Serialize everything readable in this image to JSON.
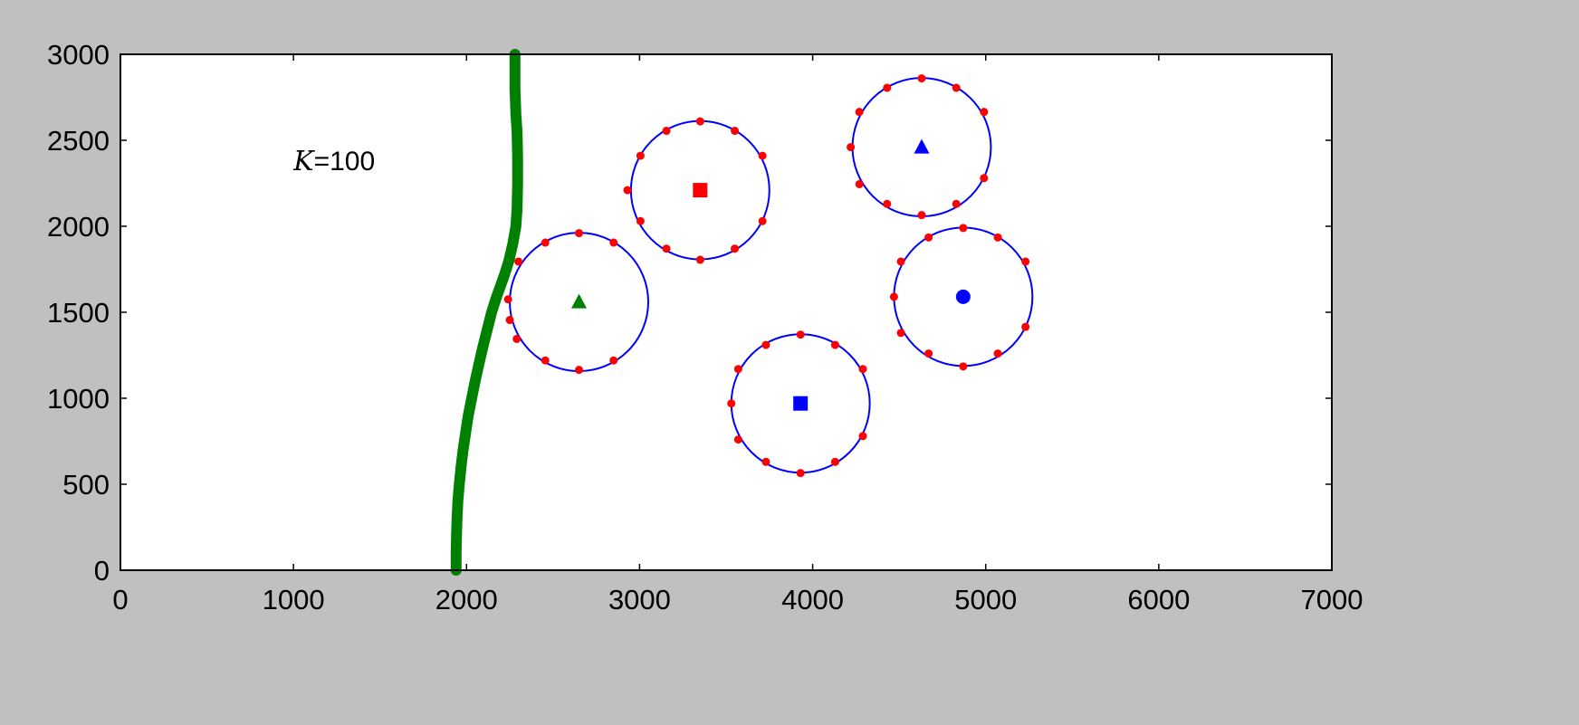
{
  "chart_data": {
    "type": "scatter",
    "title": "",
    "xlabel": "",
    "ylabel": "",
    "xlim": [
      0,
      7000
    ],
    "ylim": [
      0,
      3000
    ],
    "x_ticks": [
      0,
      1000,
      2000,
      3000,
      4000,
      5000,
      6000,
      7000
    ],
    "y_ticks": [
      0,
      500,
      1000,
      1500,
      2000,
      2500,
      3000
    ],
    "x_tick_labels": [
      "0",
      "1000",
      "2000",
      "3000",
      "4000",
      "5000",
      "6000",
      "7000"
    ],
    "y_tick_labels": [
      "0",
      "500",
      "1000",
      "1500",
      "2000",
      "2500",
      "3000"
    ],
    "grid": false,
    "annotation": {
      "italic": "K",
      "rest": "=100",
      "x": 1000,
      "y": 2380
    },
    "colors": {
      "red": "#ff0000",
      "blue": "#0000ff",
      "green": "#008000",
      "background": "#c0c0c0",
      "plot_bg": "#ffffff"
    },
    "clusters": [
      {
        "center": [
          2650,
          1560
        ],
        "radius": 400,
        "marker": "triangle",
        "color": "green"
      },
      {
        "center": [
          3350,
          2210
        ],
        "radius": 400,
        "marker": "square",
        "color": "red"
      },
      {
        "center": [
          3930,
          970
        ],
        "radius": 400,
        "marker": "square",
        "color": "blue"
      },
      {
        "center": [
          4630,
          2460
        ],
        "radius": 400,
        "marker": "triangle",
        "color": "blue"
      },
      {
        "center": [
          4870,
          1590
        ],
        "radius": 400,
        "marker": "circle",
        "color": "blue"
      }
    ],
    "red_points": [
      [
        2650,
        1960
      ],
      [
        2850,
        1905
      ],
      [
        2455,
        1905
      ],
      [
        2300,
        1795
      ],
      [
        2240,
        1575
      ],
      [
        2250,
        1455
      ],
      [
        2290,
        1345
      ],
      [
        2455,
        1220
      ],
      [
        2850,
        1220
      ],
      [
        2650,
        1165
      ],
      [
        3350,
        2610
      ],
      [
        3550,
        2555
      ],
      [
        3155,
        2555
      ],
      [
        3710,
        2410
      ],
      [
        3005,
        2410
      ],
      [
        2930,
        2210
      ],
      [
        3710,
        2030
      ],
      [
        3005,
        2030
      ],
      [
        3550,
        1870
      ],
      [
        3155,
        1870
      ],
      [
        3350,
        1805
      ],
      [
        3930,
        1370
      ],
      [
        4130,
        1310
      ],
      [
        3730,
        1310
      ],
      [
        4290,
        1170
      ],
      [
        3570,
        1170
      ],
      [
        3530,
        970
      ],
      [
        4290,
        780
      ],
      [
        3570,
        760
      ],
      [
        4130,
        630
      ],
      [
        3730,
        630
      ],
      [
        3930,
        565
      ],
      [
        4630,
        2860
      ],
      [
        4830,
        2805
      ],
      [
        4430,
        2805
      ],
      [
        4990,
        2665
      ],
      [
        4270,
        2665
      ],
      [
        4220,
        2460
      ],
      [
        4990,
        2280
      ],
      [
        4270,
        2245
      ],
      [
        4830,
        2130
      ],
      [
        4430,
        2130
      ],
      [
        4630,
        2065
      ],
      [
        4870,
        1990
      ],
      [
        5070,
        1935
      ],
      [
        4670,
        1935
      ],
      [
        5230,
        1795
      ],
      [
        4510,
        1795
      ],
      [
        4470,
        1590
      ],
      [
        5230,
        1415
      ],
      [
        4510,
        1380
      ],
      [
        5070,
        1260
      ],
      [
        4670,
        1260
      ],
      [
        4870,
        1185
      ]
    ],
    "boundary": {
      "x": [
        1940,
        1940,
        1942,
        1945,
        1950,
        1958,
        1968,
        1980,
        1995,
        2010,
        2030,
        2050,
        2072,
        2095,
        2120,
        2145,
        2170,
        2195,
        2220,
        2245,
        2268,
        2285,
        2292,
        2295,
        2295,
        2292,
        2285,
        2280,
        2280
      ],
      "y": [
        0,
        100,
        200,
        300,
        400,
        500,
        600,
        700,
        800,
        900,
        1000,
        1100,
        1200,
        1300,
        1400,
        1500,
        1580,
        1650,
        1720,
        1800,
        1900,
        2000,
        2100,
        2250,
        2400,
        2550,
        2650,
        2800,
        3000
      ]
    }
  }
}
